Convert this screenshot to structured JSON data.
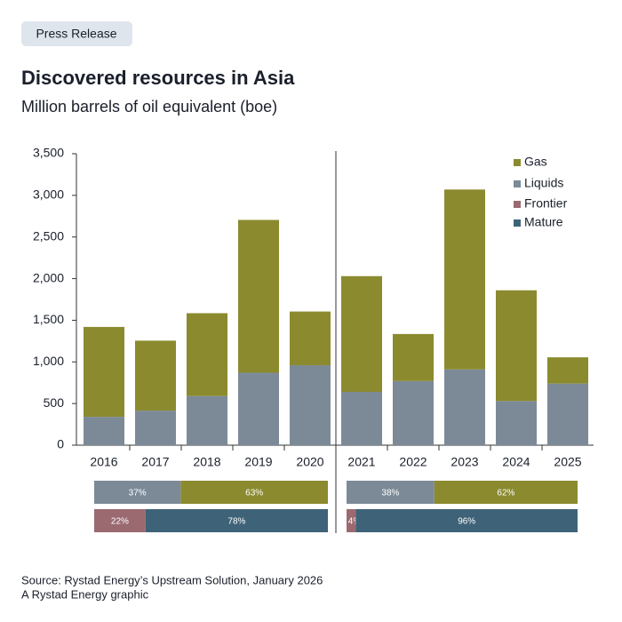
{
  "header": {
    "tag": "Press Release"
  },
  "chart_data": [
    {
      "type": "bar",
      "stacked": true,
      "title": "Discovered resources in Asia",
      "subtitle": "Million barrels of oil equivalent (boe)",
      "categories": [
        "2016",
        "2017",
        "2018",
        "2019",
        "2020",
        "2021",
        "2022",
        "2023",
        "2024",
        "2025"
      ],
      "series": [
        {
          "name": "Liquids",
          "color": "#7c8a98",
          "values": [
            340,
            415,
            590,
            870,
            960,
            640,
            770,
            910,
            530,
            740
          ]
        },
        {
          "name": "Gas",
          "color": "#8b8a2f",
          "values": [
            1080,
            840,
            995,
            1835,
            645,
            1390,
            565,
            2160,
            1330,
            315
          ]
        }
      ],
      "ylim": [
        0,
        3500
      ],
      "yticks": [
        0,
        500,
        {
          "value": 1000,
          "label": "1,000"
        },
        {
          "value": 1500,
          "label": "1,500"
        },
        {
          "value": 2000,
          "label": "2,000"
        },
        {
          "value": 2500,
          "label": "2,500"
        },
        {
          "value": 3000,
          "label": "3,000"
        },
        {
          "value": 3500,
          "label": "3,500"
        }
      ],
      "grid": false
    },
    {
      "type": "share-bar",
      "stacked": true,
      "xlim": [
        0,
        100
      ],
      "rows": [
        {
          "series": [
            {
              "color": "#7c8a98",
              "values": [
                37,
                38
              ],
              "value_labels": [
                "37%",
                "38%"
              ]
            },
            {
              "color": "#8b8a2f",
              "values": [
                63,
                62
              ],
              "value_labels": [
                "63%",
                "62%"
              ]
            }
          ]
        },
        {
          "series": [
            {
              "name": "Frontier",
              "color": "#9a6a70",
              "values": [
                22,
                4
              ],
              "value_labels": [
                "22%",
                "4%"
              ]
            },
            {
              "name": "Mature",
              "color": "#3e6378",
              "values": [
                78,
                96
              ],
              "value_labels": [
                "78%",
                "96%"
              ]
            }
          ]
        }
      ]
    }
  ],
  "footer": {
    "source": "Source: Rystad Energy’s Upstream Solution, January 2026",
    "credit": "A Rystad Energy graphic"
  }
}
